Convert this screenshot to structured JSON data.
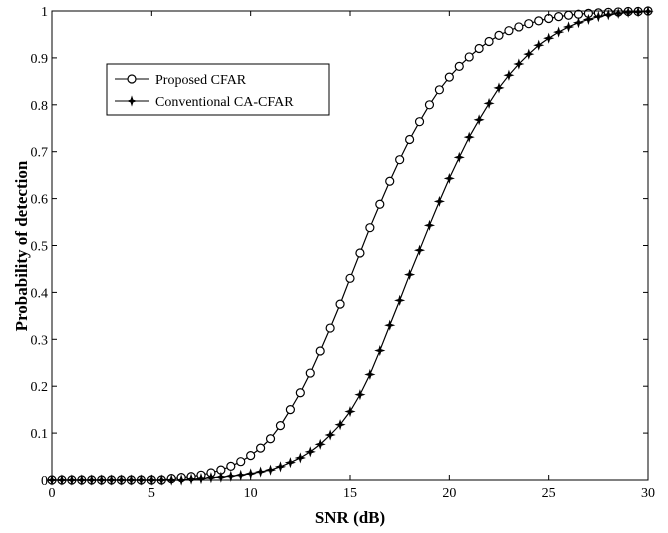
{
  "chart_data": {
    "type": "line",
    "xlabel": "SNR (dB)",
    "ylabel": "Probability of detection",
    "xlim": [
      0,
      30
    ],
    "ylim": [
      0,
      1
    ],
    "xticks": [
      "0",
      "5",
      "10",
      "15",
      "20",
      "25",
      "30"
    ],
    "yticks": [
      "0",
      "0.1",
      "0.2",
      "0.3",
      "0.4",
      "0.5",
      "0.6",
      "0.7",
      "0.8",
      "0.9",
      "1"
    ],
    "grid": false,
    "legend_position": "top-left",
    "x": [
      0.0,
      0.5,
      1.0,
      1.5,
      2.0,
      2.5,
      3.0,
      3.5,
      4.0,
      4.5,
      5.0,
      5.5,
      6.0,
      6.5,
      7.0,
      7.5,
      8.0,
      8.5,
      9.0,
      9.5,
      10.0,
      10.5,
      11.0,
      11.5,
      12.0,
      12.5,
      13.0,
      13.5,
      14.0,
      14.5,
      15.0,
      15.5,
      16.0,
      16.5,
      17.0,
      17.5,
      18.0,
      18.5,
      19.0,
      19.5,
      20.0,
      20.5,
      21.0,
      21.5,
      22.0,
      22.5,
      23.0,
      23.5,
      24.0,
      24.5,
      25.0,
      25.5,
      26.0,
      26.5,
      27.0,
      27.5,
      28.0,
      28.5,
      29.0,
      29.5,
      30.0
    ],
    "series": [
      {
        "name": "Proposed CFAR",
        "marker": "circle",
        "color": "#000000",
        "values": [
          0.0,
          0.0,
          0.0,
          0.0,
          0.0,
          0.0,
          0.0,
          0.0,
          0.0,
          0.0,
          0.0,
          0.0,
          0.003,
          0.005,
          0.007,
          0.01,
          0.015,
          0.021,
          0.029,
          0.039,
          0.052,
          0.068,
          0.088,
          0.116,
          0.15,
          0.186,
          0.228,
          0.275,
          0.324,
          0.375,
          0.43,
          0.484,
          0.538,
          0.588,
          0.637,
          0.683,
          0.726,
          0.764,
          0.8,
          0.832,
          0.859,
          0.882,
          0.902,
          0.92,
          0.935,
          0.948,
          0.958,
          0.966,
          0.973,
          0.979,
          0.984,
          0.988,
          0.991,
          0.993,
          0.995,
          0.996,
          0.997,
          0.998,
          0.999,
          0.999,
          1.0
        ]
      },
      {
        "name": "Conventional CA-CFAR",
        "marker": "star",
        "color": "#000000",
        "values": [
          0.0,
          0.0,
          0.0,
          0.0,
          0.0,
          0.0,
          0.0,
          0.0,
          0.0,
          0.0,
          0.0,
          0.0,
          0.0,
          0.0,
          0.002,
          0.003,
          0.005,
          0.006,
          0.008,
          0.01,
          0.013,
          0.017,
          0.021,
          0.028,
          0.037,
          0.047,
          0.06,
          0.076,
          0.096,
          0.118,
          0.146,
          0.182,
          0.225,
          0.276,
          0.33,
          0.383,
          0.438,
          0.49,
          0.543,
          0.594,
          0.643,
          0.688,
          0.731,
          0.768,
          0.803,
          0.836,
          0.863,
          0.887,
          0.908,
          0.927,
          0.942,
          0.955,
          0.966,
          0.975,
          0.982,
          0.988,
          0.992,
          0.995,
          0.997,
          0.998,
          0.999
        ]
      }
    ]
  }
}
